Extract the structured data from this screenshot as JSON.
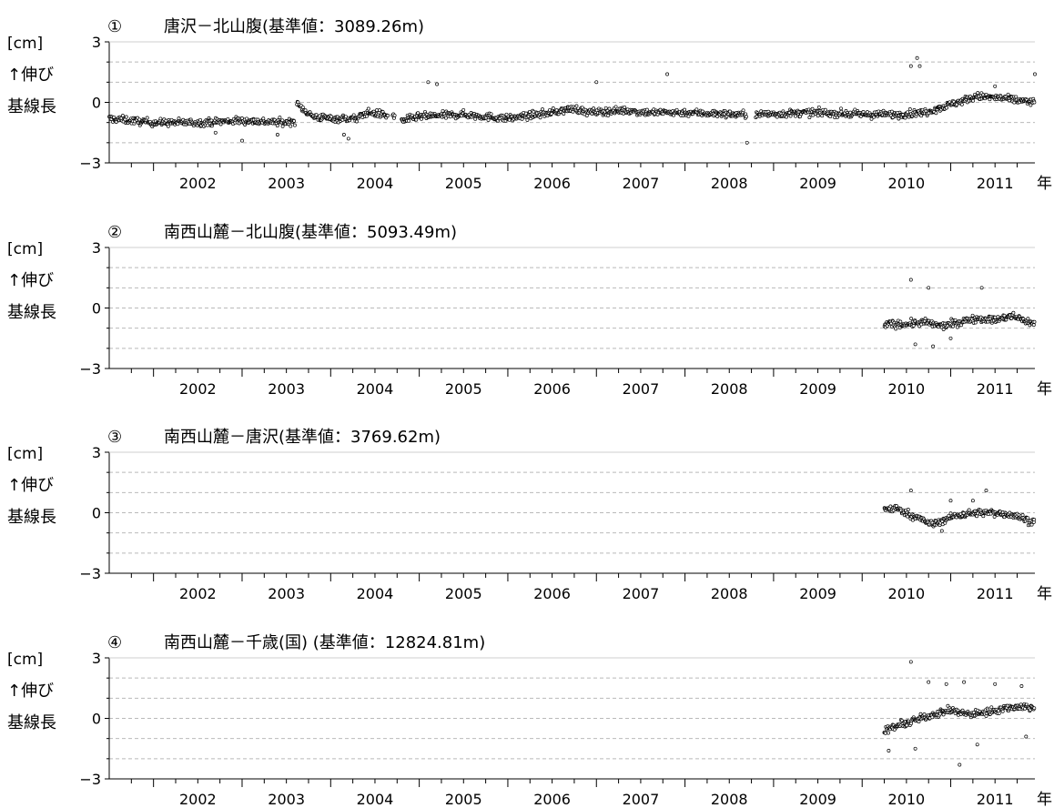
{
  "y_unit": "[cm]",
  "y_label_1": "↑伸び",
  "y_label_2": "基線長",
  "x_unit": "年",
  "years": [
    "2002",
    "2003",
    "2004",
    "2005",
    "2006",
    "2007",
    "2008",
    "2009",
    "2010",
    "2011"
  ],
  "colors": {
    "marker_edge": "#000000",
    "grid": "#b9b9b9",
    "axis": "#000000"
  },
  "chart_data": [
    {
      "type": "scatter",
      "number": "①",
      "title": "唐沢－北山腹(基準値：3089.26m)",
      "ylim": [
        -3,
        3
      ],
      "yticks": [
        -3,
        0,
        3
      ],
      "xlim": [
        2001.5,
        2011.95
      ],
      "grid": "dashed horizontal",
      "segments": [
        [
          [
            2001.5,
            -0.8
          ],
          [
            2002.0,
            -1.0
          ],
          [
            2002.5,
            -1.0
          ],
          [
            2003.0,
            -0.9
          ],
          [
            2003.5,
            -1.0
          ],
          [
            2003.6,
            -0.9
          ]
        ],
        [
          [
            2003.62,
            -0.1
          ],
          [
            2003.8,
            -0.7
          ],
          [
            2004.0,
            -0.8
          ],
          [
            2004.3,
            -0.8
          ],
          [
            2004.4,
            -0.5
          ],
          [
            2004.6,
            -0.6
          ],
          [
            2004.65,
            -0.7
          ]
        ],
        [
          [
            2004.7,
            -0.7
          ],
          [
            2004.73,
            -0.7
          ]
        ],
        [
          [
            2004.8,
            -0.9
          ],
          [
            2005.0,
            -0.7
          ],
          [
            2005.5,
            -0.6
          ],
          [
            2006.0,
            -0.8
          ],
          [
            2006.5,
            -0.5
          ],
          [
            2006.75,
            -0.3
          ],
          [
            2006.9,
            -0.5
          ],
          [
            2007.3,
            -0.4
          ],
          [
            2007.6,
            -0.5
          ],
          [
            2008.0,
            -0.5
          ],
          [
            2008.6,
            -0.6
          ],
          [
            2008.7,
            -0.6
          ]
        ],
        [
          [
            2008.8,
            -0.6
          ],
          [
            2009.5,
            -0.5
          ],
          [
            2010.0,
            -0.6
          ],
          [
            2010.4,
            -0.6
          ],
          [
            2010.7,
            -0.5
          ],
          [
            2011.0,
            -0.1
          ],
          [
            2011.3,
            0.3
          ],
          [
            2011.6,
            0.2
          ],
          [
            2011.95,
            0.0
          ]
        ]
      ],
      "outliers": [
        [
          2002.7,
          -1.5
        ],
        [
          2003.0,
          -1.9
        ],
        [
          2003.4,
          -1.6
        ],
        [
          2004.2,
          -1.8
        ],
        [
          2004.15,
          -1.6
        ],
        [
          2005.1,
          1.0
        ],
        [
          2005.2,
          0.9
        ],
        [
          2007.0,
          1.0
        ],
        [
          2007.8,
          1.4
        ],
        [
          2008.7,
          -2.0
        ],
        [
          2010.55,
          1.8
        ],
        [
          2010.62,
          2.2
        ],
        [
          2010.65,
          1.8
        ],
        [
          2011.5,
          0.8
        ],
        [
          2011.95,
          1.4
        ]
      ]
    },
    {
      "type": "scatter",
      "number": "②",
      "title": "南西山麓－北山腹(基準値：5093.49m)",
      "ylim": [
        -3,
        3
      ],
      "yticks": [
        -3,
        0,
        3
      ],
      "xlim": [
        2001.5,
        2011.95
      ],
      "grid": "dashed horizontal",
      "segments": [
        [
          [
            2010.25,
            -0.8
          ],
          [
            2010.5,
            -0.8
          ],
          [
            2010.7,
            -0.7
          ],
          [
            2010.9,
            -0.9
          ],
          [
            2011.1,
            -0.7
          ],
          [
            2011.3,
            -0.5
          ],
          [
            2011.5,
            -0.6
          ],
          [
            2011.7,
            -0.4
          ],
          [
            2011.95,
            -0.8
          ]
        ]
      ],
      "outliers": [
        [
          2010.55,
          1.4
        ],
        [
          2010.75,
          1.0
        ],
        [
          2010.6,
          -1.8
        ],
        [
          2010.8,
          -1.9
        ],
        [
          2011.35,
          1.0
        ],
        [
          2011.0,
          -1.5
        ]
      ]
    },
    {
      "type": "scatter",
      "number": "③",
      "title": "南西山麓－唐沢(基準値：3769.62m)",
      "ylim": [
        -3,
        3
      ],
      "yticks": [
        -3,
        0,
        3
      ],
      "xlim": [
        2001.5,
        2011.95
      ],
      "grid": "dashed horizontal",
      "segments": [
        [
          [
            2010.25,
            0.2
          ],
          [
            2010.4,
            0.2
          ],
          [
            2010.5,
            0.0
          ],
          [
            2010.65,
            -0.3
          ],
          [
            2010.8,
            -0.6
          ],
          [
            2010.95,
            -0.3
          ],
          [
            2011.1,
            -0.1
          ],
          [
            2011.3,
            0.0
          ],
          [
            2011.5,
            0.0
          ],
          [
            2011.7,
            -0.1
          ],
          [
            2011.95,
            -0.5
          ]
        ]
      ],
      "outliers": [
        [
          2010.55,
          1.1
        ],
        [
          2011.0,
          0.6
        ],
        [
          2011.25,
          0.6
        ],
        [
          2011.4,
          1.1
        ],
        [
          2010.9,
          -0.9
        ]
      ]
    },
    {
      "type": "scatter",
      "number": "④",
      "title": "南西山麓－千歳(国) (基準値：12824.81m)",
      "ylim": [
        -3,
        3
      ],
      "yticks": [
        -3,
        0,
        3
      ],
      "xlim": [
        2001.5,
        2011.95
      ],
      "grid": "dashed horizontal",
      "segments": [
        [
          [
            2010.25,
            -0.6
          ],
          [
            2010.45,
            -0.3
          ],
          [
            2010.6,
            -0.1
          ],
          [
            2010.8,
            0.2
          ],
          [
            2011.0,
            0.4
          ],
          [
            2011.2,
            0.2
          ],
          [
            2011.4,
            0.3
          ],
          [
            2011.6,
            0.5
          ],
          [
            2011.8,
            0.6
          ],
          [
            2011.95,
            0.5
          ]
        ]
      ],
      "outliers": [
        [
          2010.55,
          2.8
        ],
        [
          2010.75,
          1.8
        ],
        [
          2010.95,
          1.7
        ],
        [
          2011.15,
          1.8
        ],
        [
          2011.5,
          1.7
        ],
        [
          2011.8,
          1.6
        ],
        [
          2010.6,
          -1.5
        ],
        [
          2011.1,
          -2.3
        ],
        [
          2011.3,
          -1.3
        ],
        [
          2010.3,
          -1.6
        ],
        [
          2011.85,
          -0.9
        ]
      ]
    }
  ]
}
